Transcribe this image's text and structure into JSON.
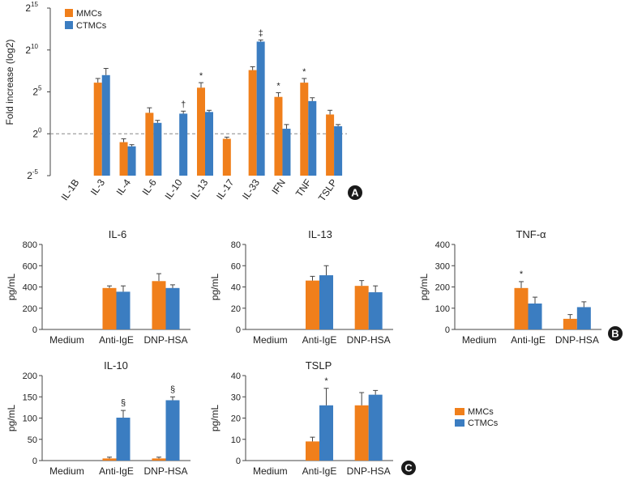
{
  "colors": {
    "mmc": "#F07F1B",
    "ctmc": "#3B7DC1",
    "axis": "#444444",
    "guide": "#888888",
    "badge": "#1a1a1a"
  },
  "chart_data": [
    {
      "panel": "A",
      "type": "bar",
      "ylabel": "Fold increase (log2)",
      "y_ticks": [
        {
          "base": "2",
          "exp": "15",
          "value": 15
        },
        {
          "base": "2",
          "exp": "10",
          "value": 10
        },
        {
          "base": "2",
          "exp": "5",
          "value": 5
        },
        {
          "base": "2",
          "exp": "0",
          "value": 0
        },
        {
          "base": "2",
          "exp": "-5",
          "value": -5
        }
      ],
      "ylim": [
        -5,
        15
      ],
      "reference_line": 0,
      "categories": [
        "IL-1B",
        "IL-3",
        "IL-4",
        "IL-6",
        "IL-10",
        "IL-13",
        "IL-17",
        "IL-33",
        "IFN",
        "TNF",
        "TSLP"
      ],
      "series": [
        {
          "name": "MMCs",
          "values": [
            null,
            6.1,
            -1.0,
            2.5,
            null,
            5.5,
            -0.6,
            7.6,
            4.4,
            6.1,
            2.3
          ],
          "errors": [
            null,
            0.5,
            0.4,
            0.6,
            null,
            0.6,
            0.2,
            0.4,
            0.5,
            0.5,
            0.5
          ],
          "annotations": [
            "",
            "",
            "",
            "",
            "",
            "*",
            "",
            "",
            "*",
            "*",
            ""
          ]
        },
        {
          "name": "CTMCs",
          "values": [
            null,
            7.0,
            -1.5,
            1.3,
            2.4,
            2.6,
            null,
            11.0,
            0.6,
            3.9,
            0.9
          ],
          "errors": [
            null,
            0.8,
            0.2,
            0.3,
            0.3,
            0.2,
            null,
            0.2,
            0.5,
            0.4,
            0.2
          ],
          "annotations": [
            "",
            "",
            "",
            "",
            "†",
            "",
            "",
            "‡",
            "",
            "",
            ""
          ]
        }
      ],
      "legend": [
        "MMCs",
        "CTMCs"
      ],
      "legend_position": "top-left",
      "badge": "A"
    },
    {
      "panel": "B-IL-6",
      "type": "bar",
      "title": "IL-6",
      "ylabel": "pg/mL",
      "ylim": [
        0,
        800
      ],
      "y_ticks": [
        0,
        200,
        400,
        600,
        800
      ],
      "categories": [
        "Medium",
        "Anti-IgE",
        "DNP-HSA"
      ],
      "series": [
        {
          "name": "MMCs",
          "values": [
            0,
            390,
            455
          ],
          "errors": [
            0,
            20,
            70
          ],
          "annotations": [
            "",
            "",
            ""
          ]
        },
        {
          "name": "CTMCs",
          "values": [
            0,
            355,
            390
          ],
          "errors": [
            0,
            55,
            30
          ],
          "annotations": [
            "",
            "",
            ""
          ]
        }
      ]
    },
    {
      "panel": "B-IL-13",
      "type": "bar",
      "title": "IL-13",
      "ylabel": "pg/mL",
      "ylim": [
        0,
        80
      ],
      "y_ticks": [
        0,
        20,
        40,
        60,
        80
      ],
      "categories": [
        "Medium",
        "Anti-IgE",
        "DNP-HSA"
      ],
      "series": [
        {
          "name": "MMCs",
          "values": [
            0,
            46,
            41
          ],
          "errors": [
            0,
            4,
            5
          ],
          "annotations": [
            "",
            "",
            ""
          ]
        },
        {
          "name": "CTMCs",
          "values": [
            0,
            51,
            35
          ],
          "errors": [
            0,
            9,
            6
          ],
          "annotations": [
            "",
            "",
            ""
          ]
        }
      ]
    },
    {
      "panel": "B-TNF",
      "type": "bar",
      "title": "TNF-α",
      "ylabel": "pg/mL",
      "ylim": [
        0,
        400
      ],
      "y_ticks": [
        0,
        100,
        200,
        300,
        400
      ],
      "categories": [
        "Medium",
        "Anti-IgE",
        "DNP-HSA"
      ],
      "series": [
        {
          "name": "MMCs",
          "values": [
            0,
            195,
            50
          ],
          "errors": [
            0,
            30,
            20
          ],
          "annotations": [
            "",
            "*",
            ""
          ]
        },
        {
          "name": "CTMCs",
          "values": [
            0,
            122,
            105
          ],
          "errors": [
            0,
            30,
            25
          ],
          "annotations": [
            "",
            "",
            ""
          ]
        }
      ],
      "badge": "B"
    },
    {
      "panel": "C-IL-10",
      "type": "bar",
      "title": "IL-10",
      "ylabel": "pg/mL",
      "ylim": [
        0,
        200
      ],
      "y_ticks": [
        0,
        50,
        100,
        150,
        200
      ],
      "categories": [
        "Medium",
        "Anti-IgE",
        "DNP-HSA"
      ],
      "series": [
        {
          "name": "MMCs",
          "values": [
            0,
            5,
            5
          ],
          "errors": [
            0,
            3,
            3
          ],
          "annotations": [
            "",
            "",
            ""
          ]
        },
        {
          "name": "CTMCs",
          "values": [
            0,
            101,
            142
          ],
          "errors": [
            0,
            17,
            8
          ],
          "annotations": [
            "",
            "§",
            "§"
          ]
        }
      ],
      "badge": "C"
    },
    {
      "panel": "C-TSLP",
      "type": "bar",
      "title": "TSLP",
      "ylabel": "pg/mL",
      "ylim": [
        0,
        40
      ],
      "y_ticks": [
        0,
        10,
        20,
        30,
        40
      ],
      "categories": [
        "Medium",
        "Anti-IgE",
        "DNP-HSA"
      ],
      "series": [
        {
          "name": "MMCs",
          "values": [
            0,
            9,
            26
          ],
          "errors": [
            0,
            2,
            6
          ],
          "annotations": [
            "",
            "",
            ""
          ]
        },
        {
          "name": "CTMCs",
          "values": [
            0,
            26,
            31
          ],
          "errors": [
            0,
            8,
            2
          ],
          "annotations": [
            "",
            "*",
            ""
          ]
        }
      ]
    }
  ],
  "legend_bc": [
    "MMCs",
    "CTMCs"
  ]
}
